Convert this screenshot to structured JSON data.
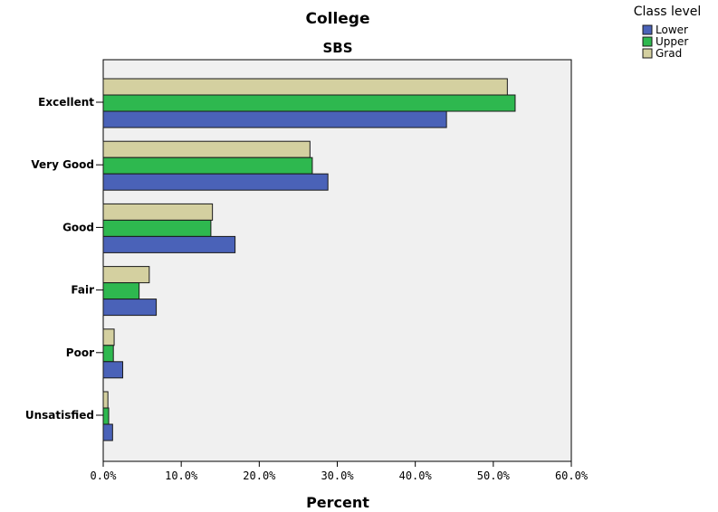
{
  "chart_data": {
    "type": "bar",
    "orientation": "horizontal",
    "title": "College",
    "subtitle": "SBS",
    "xlabel": "Percent",
    "ylabel": "",
    "xlim": [
      0,
      60
    ],
    "xticks": [
      0,
      10,
      20,
      30,
      40,
      50,
      60
    ],
    "xtick_labels": [
      "0.0%",
      "10.0%",
      "20.0%",
      "30.0%",
      "40.0%",
      "50.0%",
      "60.0%"
    ],
    "categories": [
      "Excellent",
      "Very Good",
      "Good",
      "Fair",
      "Poor",
      "Unsatisfied"
    ],
    "legend": {
      "title": "Class level",
      "placement": "top-right"
    },
    "series": [
      {
        "name": "Grad",
        "color": "#d4d0a0",
        "values": [
          51.8,
          26.5,
          14.0,
          5.9,
          1.4,
          0.6
        ]
      },
      {
        "name": "Upper",
        "color": "#2eb84f",
        "values": [
          52.8,
          26.8,
          13.8,
          4.6,
          1.3,
          0.7
        ]
      },
      {
        "name": "Lower",
        "color": "#4a62b8",
        "values": [
          44.0,
          28.8,
          16.9,
          6.8,
          2.5,
          1.2
        ]
      }
    ],
    "legend_order": [
      "Lower",
      "Upper",
      "Grad"
    ],
    "plot_background": "#f0f0f0",
    "grid": false
  }
}
